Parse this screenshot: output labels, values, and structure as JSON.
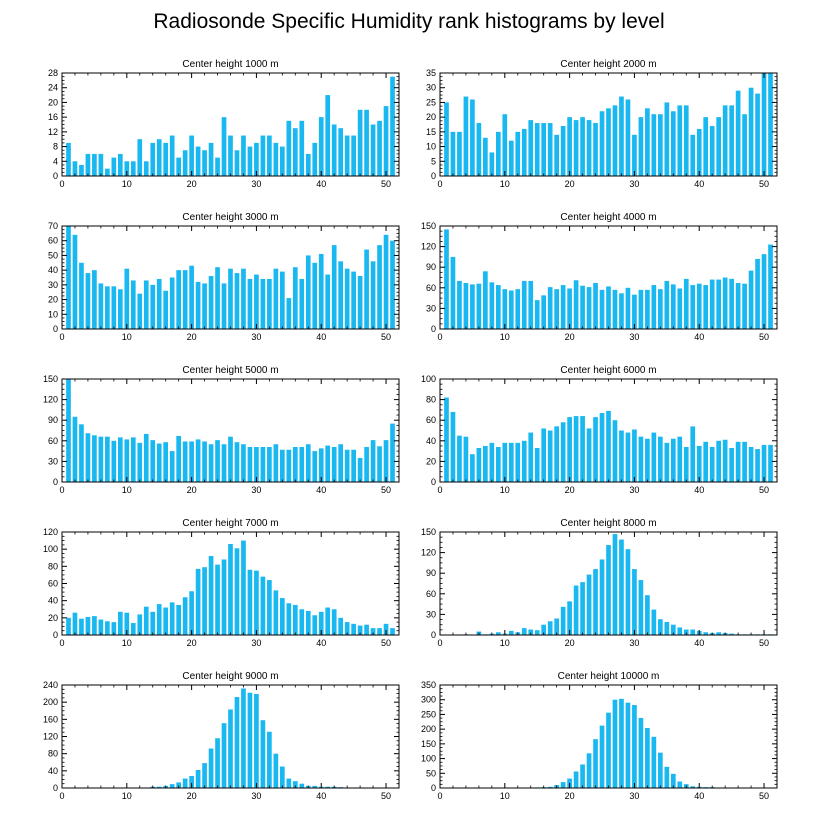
{
  "title": "Radiosonde Specific Humidity rank histograms by level",
  "bar_color": "#1ab8f0",
  "chart_data": [
    {
      "type": "bar",
      "title": "Center height 1000 m",
      "xlabel": "",
      "ylabel": "",
      "xlim": [
        0,
        52
      ],
      "ylim": [
        0,
        28
      ],
      "xticks": [
        0,
        10,
        20,
        30,
        40,
        50
      ],
      "yticks": [
        0,
        4,
        8,
        12,
        16,
        20,
        24,
        28
      ],
      "values": [
        9,
        4,
        3,
        6,
        6,
        6,
        2,
        5,
        6,
        4,
        4,
        10,
        4,
        9,
        10,
        9,
        11,
        5,
        7,
        11,
        8,
        7,
        9,
        5,
        16,
        11,
        7,
        11,
        8,
        9,
        11,
        11,
        9,
        8,
        15,
        13,
        15,
        6,
        9,
        16,
        22,
        14,
        13,
        11,
        11,
        18,
        18,
        14,
        15,
        19,
        27
      ]
    },
    {
      "type": "bar",
      "title": "Center height 2000 m",
      "xlabel": "",
      "ylabel": "",
      "xlim": [
        0,
        52
      ],
      "ylim": [
        0,
        35
      ],
      "xticks": [
        0,
        10,
        20,
        30,
        40,
        50
      ],
      "yticks": [
        0,
        5,
        10,
        15,
        20,
        25,
        30,
        35
      ],
      "values": [
        25,
        15,
        15,
        27,
        26,
        18,
        13,
        8,
        15,
        21,
        12,
        15,
        16,
        19,
        18,
        18,
        18,
        14,
        17,
        20,
        19,
        20,
        19,
        18,
        22,
        23,
        24,
        27,
        26,
        14,
        20,
        23,
        21,
        21,
        25,
        22,
        24,
        24,
        14,
        16,
        20,
        17,
        20,
        24,
        24,
        29,
        21,
        30,
        28,
        35,
        35
      ]
    },
    {
      "type": "bar",
      "title": "Center height 3000 m",
      "xlabel": "",
      "ylabel": "",
      "xlim": [
        0,
        52
      ],
      "ylim": [
        0,
        70
      ],
      "xticks": [
        0,
        10,
        20,
        30,
        40,
        50
      ],
      "yticks": [
        0,
        10,
        20,
        30,
        40,
        50,
        60,
        70
      ],
      "values": [
        70,
        64,
        45,
        38,
        40,
        31,
        29,
        29,
        27,
        41,
        33,
        24,
        33,
        30,
        34,
        26,
        35,
        40,
        40,
        43,
        32,
        31,
        36,
        42,
        31,
        41,
        38,
        41,
        34,
        37,
        34,
        34,
        41,
        39,
        21,
        42,
        34,
        50,
        45,
        51,
        37,
        57,
        46,
        41,
        39,
        36,
        54,
        46,
        57,
        64,
        60
      ]
    },
    {
      "type": "bar",
      "title": "Center height 4000 m",
      "xlabel": "",
      "ylabel": "",
      "xlim": [
        0,
        52
      ],
      "ylim": [
        0,
        150
      ],
      "xticks": [
        0,
        10,
        20,
        30,
        40,
        50
      ],
      "yticks": [
        0,
        30,
        60,
        90,
        120,
        150
      ],
      "values": [
        145,
        105,
        70,
        67,
        65,
        66,
        84,
        68,
        64,
        58,
        56,
        58,
        70,
        70,
        42,
        49,
        61,
        58,
        64,
        59,
        71,
        63,
        61,
        67,
        57,
        62,
        57,
        52,
        60,
        50,
        57,
        57,
        64,
        58,
        70,
        65,
        59,
        73,
        64,
        66,
        64,
        72,
        72,
        75,
        73,
        67,
        66,
        85,
        102,
        109,
        123
      ]
    },
    {
      "type": "bar",
      "title": "Center height 5000 m",
      "xlabel": "",
      "ylabel": "",
      "xlim": [
        0,
        52
      ],
      "ylim": [
        0,
        150
      ],
      "xticks": [
        0,
        10,
        20,
        30,
        40,
        50
      ],
      "yticks": [
        0,
        30,
        60,
        90,
        120,
        150
      ],
      "values": [
        150,
        95,
        84,
        71,
        68,
        66,
        66,
        60,
        65,
        62,
        65,
        57,
        70,
        61,
        56,
        58,
        45,
        67,
        59,
        59,
        62,
        59,
        55,
        61,
        55,
        66,
        58,
        55,
        51,
        51,
        51,
        51,
        55,
        47,
        47,
        51,
        51,
        55,
        45,
        49,
        53,
        51,
        55,
        47,
        47,
        35,
        51,
        61,
        52,
        61,
        85
      ]
    },
    {
      "type": "bar",
      "title": "Center height 6000 m",
      "xlabel": "",
      "ylabel": "",
      "xlim": [
        0,
        52
      ],
      "ylim": [
        0,
        100
      ],
      "xticks": [
        0,
        10,
        20,
        30,
        40,
        50
      ],
      "yticks": [
        0,
        20,
        40,
        60,
        80,
        100
      ],
      "values": [
        82,
        68,
        45,
        44,
        27,
        33,
        35,
        38,
        34,
        38,
        38,
        38,
        40,
        48,
        33,
        52,
        50,
        54,
        58,
        63,
        64,
        64,
        52,
        63,
        67,
        69,
        60,
        50,
        48,
        51,
        44,
        42,
        48,
        44,
        38,
        42,
        44,
        34,
        54,
        35,
        39,
        34,
        40,
        41,
        33,
        39,
        39,
        34,
        32,
        36,
        36
      ]
    },
    {
      "type": "bar",
      "title": "Center height 7000 m",
      "xlabel": "",
      "ylabel": "",
      "xlim": [
        0,
        52
      ],
      "ylim": [
        0,
        120
      ],
      "xticks": [
        0,
        10,
        20,
        30,
        40,
        50
      ],
      "yticks": [
        0,
        20,
        40,
        60,
        80,
        100,
        120
      ],
      "values": [
        20,
        26,
        19,
        21,
        22,
        18,
        16,
        15,
        27,
        26,
        14,
        24,
        33,
        27,
        36,
        32,
        38,
        35,
        44,
        51,
        77,
        79,
        92,
        82,
        88,
        106,
        101,
        110,
        76,
        75,
        68,
        64,
        52,
        43,
        37,
        35,
        30,
        28,
        23,
        27,
        32,
        30,
        20,
        15,
        13,
        11,
        12,
        8,
        8,
        13,
        8
      ]
    },
    {
      "type": "bar",
      "title": "Center height 8000 m",
      "xlabel": "",
      "ylabel": "",
      "xlim": [
        0,
        52
      ],
      "ylim": [
        0,
        150
      ],
      "xticks": [
        0,
        10,
        20,
        30,
        40,
        50
      ],
      "yticks": [
        0,
        30,
        60,
        90,
        120,
        150
      ],
      "values": [
        0,
        0,
        0,
        1,
        0,
        5,
        1,
        2,
        4,
        2,
        6,
        4,
        10,
        8,
        7,
        15,
        20,
        24,
        41,
        49,
        72,
        77,
        88,
        96,
        110,
        131,
        147,
        139,
        125,
        96,
        80,
        58,
        37,
        23,
        19,
        15,
        11,
        8,
        8,
        6,
        4,
        3,
        4,
        3,
        2,
        1,
        1,
        1,
        1,
        1,
        1
      ]
    },
    {
      "type": "bar",
      "title": "Center height 9000 m",
      "xlabel": "",
      "ylabel": "",
      "xlim": [
        0,
        52
      ],
      "ylim": [
        0,
        240
      ],
      "xticks": [
        0,
        10,
        20,
        30,
        40,
        50
      ],
      "yticks": [
        0,
        40,
        80,
        120,
        160,
        200,
        240
      ],
      "values": [
        0,
        0,
        0,
        0,
        0,
        0,
        0,
        0,
        0,
        0,
        1,
        1,
        1,
        3,
        3,
        5,
        9,
        13,
        22,
        28,
        42,
        58,
        92,
        116,
        151,
        183,
        212,
        232,
        222,
        219,
        158,
        131,
        80,
        50,
        22,
        16,
        10,
        5,
        5,
        3,
        3,
        3,
        2,
        1,
        1,
        1,
        1,
        0,
        0,
        0,
        0
      ]
    },
    {
      "type": "bar",
      "title": "Center height 10000 m",
      "xlabel": "",
      "ylabel": "",
      "xlim": [
        0,
        52
      ],
      "ylim": [
        0,
        350
      ],
      "xticks": [
        0,
        10,
        20,
        30,
        40,
        50
      ],
      "yticks": [
        0,
        50,
        100,
        150,
        200,
        250,
        300,
        350
      ],
      "values": [
        0,
        0,
        0,
        0,
        0,
        0,
        0,
        0,
        0,
        0,
        0,
        0,
        1,
        1,
        2,
        3,
        4,
        10,
        20,
        32,
        56,
        80,
        118,
        166,
        212,
        256,
        300,
        303,
        290,
        282,
        238,
        204,
        174,
        120,
        72,
        48,
        22,
        13,
        6,
        4,
        3,
        3,
        1,
        1,
        1,
        1,
        0,
        0,
        0,
        0,
        0
      ]
    }
  ]
}
